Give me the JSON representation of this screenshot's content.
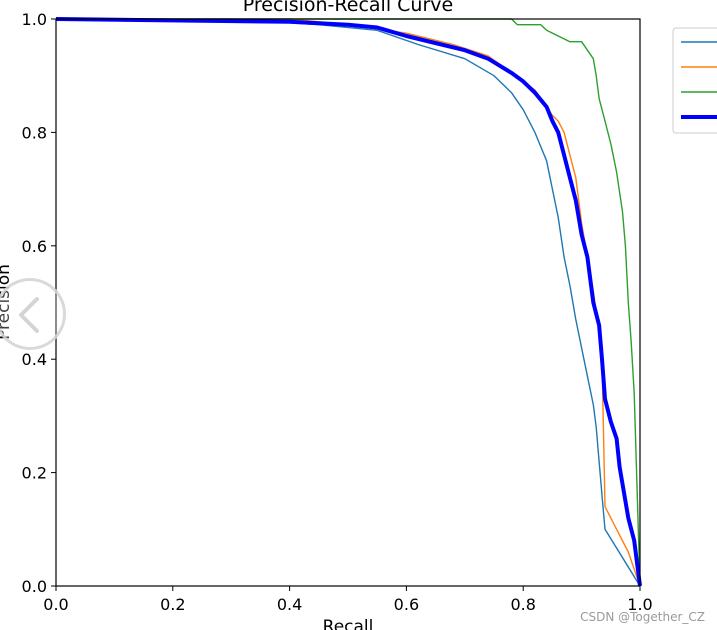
{
  "chart_data": {
    "type": "line",
    "title": "Precision-Recall Curve",
    "xlabel": "Recall",
    "ylabel": "Precision",
    "xlim": [
      0.0,
      1.0
    ],
    "ylim": [
      0.0,
      1.0
    ],
    "x_ticks": [
      "0.0",
      "0.2",
      "0.4",
      "0.6",
      "0.8",
      "1.0"
    ],
    "y_ticks": [
      "0.0",
      "0.2",
      "0.4",
      "0.6",
      "0.8",
      "1.0"
    ],
    "grid": false,
    "legend_position": "upper-right-outside",
    "series": [
      {
        "color": "#1f77b4",
        "thick": false,
        "points": [
          [
            0.0,
            1.0
          ],
          [
            0.3,
            1.0
          ],
          [
            0.45,
            0.99
          ],
          [
            0.55,
            0.98
          ],
          [
            0.62,
            0.955
          ],
          [
            0.7,
            0.93
          ],
          [
            0.75,
            0.9
          ],
          [
            0.78,
            0.87
          ],
          [
            0.8,
            0.84
          ],
          [
            0.82,
            0.8
          ],
          [
            0.84,
            0.75
          ],
          [
            0.85,
            0.7
          ],
          [
            0.86,
            0.65
          ],
          [
            0.87,
            0.58
          ],
          [
            0.88,
            0.53
          ],
          [
            0.89,
            0.47
          ],
          [
            0.9,
            0.42
          ],
          [
            0.91,
            0.37
          ],
          [
            0.92,
            0.32
          ],
          [
            0.925,
            0.28
          ],
          [
            0.93,
            0.22
          ],
          [
            0.935,
            0.16
          ],
          [
            0.94,
            0.1
          ],
          [
            1.0,
            0.0
          ]
        ]
      },
      {
        "color": "#ff7f0e",
        "thick": false,
        "points": [
          [
            0.0,
            1.0
          ],
          [
            0.4,
            1.0
          ],
          [
            0.5,
            0.99
          ],
          [
            0.6,
            0.975
          ],
          [
            0.68,
            0.955
          ],
          [
            0.74,
            0.935
          ],
          [
            0.78,
            0.905
          ],
          [
            0.82,
            0.875
          ],
          [
            0.84,
            0.845
          ],
          [
            0.85,
            0.83
          ],
          [
            0.86,
            0.82
          ],
          [
            0.87,
            0.8
          ],
          [
            0.88,
            0.76
          ],
          [
            0.89,
            0.72
          ],
          [
            0.9,
            0.64
          ],
          [
            0.91,
            0.58
          ],
          [
            0.92,
            0.52
          ],
          [
            0.93,
            0.45
          ],
          [
            0.935,
            0.4
          ],
          [
            0.94,
            0.14
          ],
          [
            0.96,
            0.1
          ],
          [
            0.98,
            0.06
          ],
          [
            1.0,
            0.0
          ]
        ]
      },
      {
        "color": "#2ca02c",
        "thick": false,
        "points": [
          [
            0.0,
            1.0
          ],
          [
            0.78,
            1.0
          ],
          [
            0.79,
            0.99
          ],
          [
            0.83,
            0.99
          ],
          [
            0.84,
            0.98
          ],
          [
            0.86,
            0.97
          ],
          [
            0.88,
            0.96
          ],
          [
            0.9,
            0.96
          ],
          [
            0.92,
            0.93
          ],
          [
            0.925,
            0.9
          ],
          [
            0.93,
            0.86
          ],
          [
            0.94,
            0.82
          ],
          [
            0.95,
            0.78
          ],
          [
            0.96,
            0.73
          ],
          [
            0.97,
            0.66
          ],
          [
            0.975,
            0.6
          ],
          [
            0.98,
            0.5
          ],
          [
            0.985,
            0.43
          ],
          [
            0.99,
            0.34
          ],
          [
            1.0,
            0.0
          ]
        ]
      },
      {
        "color": "#0000ff",
        "thick": true,
        "points": [
          [
            0.0,
            1.0
          ],
          [
            0.4,
            0.995
          ],
          [
            0.5,
            0.99
          ],
          [
            0.55,
            0.985
          ],
          [
            0.6,
            0.97
          ],
          [
            0.66,
            0.955
          ],
          [
            0.7,
            0.945
          ],
          [
            0.74,
            0.93
          ],
          [
            0.78,
            0.905
          ],
          [
            0.8,
            0.89
          ],
          [
            0.82,
            0.87
          ],
          [
            0.84,
            0.845
          ],
          [
            0.85,
            0.82
          ],
          [
            0.86,
            0.8
          ],
          [
            0.87,
            0.76
          ],
          [
            0.88,
            0.72
          ],
          [
            0.89,
            0.68
          ],
          [
            0.9,
            0.62
          ],
          [
            0.91,
            0.58
          ],
          [
            0.92,
            0.5
          ],
          [
            0.93,
            0.46
          ],
          [
            0.935,
            0.4
          ],
          [
            0.94,
            0.33
          ],
          [
            0.95,
            0.29
          ],
          [
            0.96,
            0.26
          ],
          [
            0.965,
            0.21
          ],
          [
            0.97,
            0.18
          ],
          [
            0.98,
            0.12
          ],
          [
            0.99,
            0.08
          ],
          [
            1.0,
            0.0
          ]
        ]
      }
    ]
  },
  "watermark": "CSDN @Together_CZ",
  "icons": {
    "nav": "chevron-left-icon"
  }
}
